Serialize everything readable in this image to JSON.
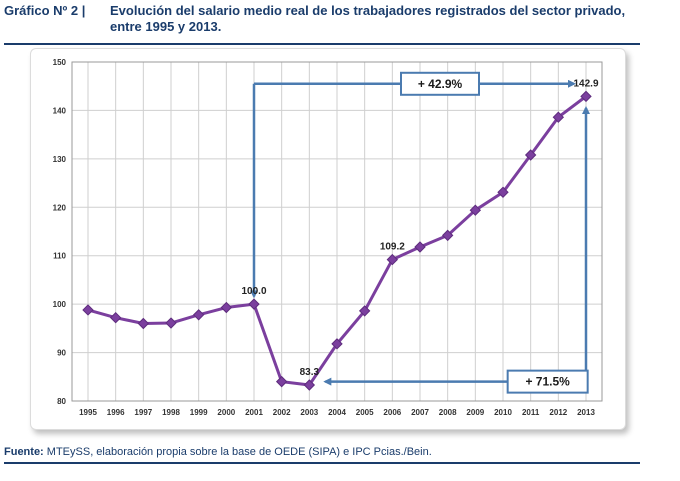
{
  "header": {
    "label": "Gráfico Nº 2 |",
    "title": "Evolución del salario medio real de los trabajadores registrados del sector privado, entre 1995 y 2013."
  },
  "footer": {
    "source_label": "Fuente:",
    "source_text": "MTEySS, elaboración propia sobre la base de OEDE (SIPA) e IPC Pcias./Bein."
  },
  "colors": {
    "line": "#7b3f9e",
    "arrow": "#4b7bb0",
    "grid": "#cfcfcf",
    "header": "#1a3c6b"
  },
  "chart_data": {
    "type": "line",
    "title": "Evolución del salario medio real de los trabajadores registrados del sector privado, entre 1995 y 2013.",
    "xlabel": "",
    "ylabel": "",
    "ylim": [
      80,
      150
    ],
    "yticks": [
      80,
      90,
      100,
      110,
      120,
      130,
      140,
      150
    ],
    "grid": true,
    "categories": [
      "1995",
      "1996",
      "1997",
      "1998",
      "1999",
      "2000",
      "2001",
      "2002",
      "2003",
      "2004",
      "2005",
      "2006",
      "2007",
      "2008",
      "2009",
      "2010",
      "2011",
      "2012",
      "2013"
    ],
    "series": [
      {
        "name": "Salario medio real",
        "values": [
          98.8,
          97.2,
          96.0,
          96.1,
          97.8,
          99.3,
          100.0,
          84.0,
          83.3,
          91.8,
          98.6,
          109.2,
          111.8,
          114.2,
          119.4,
          123.1,
          130.8,
          138.6,
          142.9
        ]
      }
    ],
    "data_labels": [
      {
        "category": "2001",
        "text": "100.0"
      },
      {
        "category": "2003",
        "text": "83.3"
      },
      {
        "category": "2006",
        "text": "109.2"
      },
      {
        "category": "2013",
        "text": "142.9"
      }
    ],
    "annotations": [
      {
        "text": "+ 42.9%",
        "from": "2001",
        "to": "2013",
        "level": 145.5
      },
      {
        "text": "+ 71.5%",
        "from": "2003",
        "to": "2013",
        "level": 84.0
      }
    ]
  }
}
